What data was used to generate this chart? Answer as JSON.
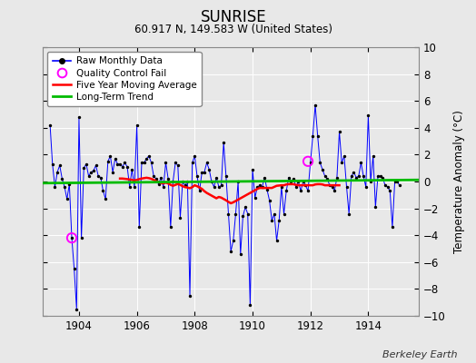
{
  "title": "SUNRISE",
  "subtitle": "60.917 N, 149.583 W (United States)",
  "ylabel": "Temperature Anomaly (°C)",
  "attribution": "Berkeley Earth",
  "ylim": [
    -10,
    10
  ],
  "xlim": [
    1902.75,
    1915.75
  ],
  "xticks": [
    1904,
    1906,
    1908,
    1910,
    1912,
    1914
  ],
  "yticks": [
    -10,
    -8,
    -6,
    -4,
    -2,
    0,
    2,
    4,
    6,
    8,
    10
  ],
  "fig_facecolor": "#e8e8e8",
  "ax_facecolor": "#e8e8e8",
  "raw_line_color": "#0000ff",
  "raw_marker_color": "#000000",
  "moving_avg_color": "#ff0000",
  "trend_color": "#00bb00",
  "qc_fail_color": "#ff00ff",
  "grid_color": "#ffffff",
  "raw_data": [
    [
      1903.0,
      4.2
    ],
    [
      1903.083,
      1.3
    ],
    [
      1903.167,
      -0.4
    ],
    [
      1903.25,
      0.7
    ],
    [
      1903.333,
      1.2
    ],
    [
      1903.417,
      0.2
    ],
    [
      1903.5,
      -0.4
    ],
    [
      1903.583,
      -1.3
    ],
    [
      1903.667,
      -0.2
    ],
    [
      1903.75,
      -4.2
    ],
    [
      1903.833,
      -6.5
    ],
    [
      1903.917,
      -9.5
    ],
    [
      1904.0,
      4.8
    ],
    [
      1904.083,
      -4.2
    ],
    [
      1904.167,
      1.0
    ],
    [
      1904.25,
      1.3
    ],
    [
      1904.333,
      0.4
    ],
    [
      1904.417,
      0.7
    ],
    [
      1904.5,
      0.8
    ],
    [
      1904.583,
      1.2
    ],
    [
      1904.667,
      0.4
    ],
    [
      1904.75,
      0.3
    ],
    [
      1904.833,
      -0.7
    ],
    [
      1904.917,
      -1.3
    ],
    [
      1905.0,
      1.5
    ],
    [
      1905.083,
      1.9
    ],
    [
      1905.167,
      0.7
    ],
    [
      1905.25,
      1.7
    ],
    [
      1905.333,
      1.3
    ],
    [
      1905.417,
      1.3
    ],
    [
      1905.5,
      1.1
    ],
    [
      1905.583,
      1.4
    ],
    [
      1905.667,
      1.1
    ],
    [
      1905.75,
      -0.4
    ],
    [
      1905.833,
      0.9
    ],
    [
      1905.917,
      -0.4
    ],
    [
      1906.0,
      4.2
    ],
    [
      1906.083,
      -3.4
    ],
    [
      1906.167,
      1.4
    ],
    [
      1906.25,
      1.4
    ],
    [
      1906.333,
      1.7
    ],
    [
      1906.417,
      1.9
    ],
    [
      1906.5,
      1.4
    ],
    [
      1906.583,
      0.4
    ],
    [
      1906.667,
      0.2
    ],
    [
      1906.75,
      -0.2
    ],
    [
      1906.833,
      0.3
    ],
    [
      1906.917,
      -0.4
    ],
    [
      1907.0,
      1.4
    ],
    [
      1907.083,
      0.2
    ],
    [
      1907.167,
      -3.4
    ],
    [
      1907.25,
      0.0
    ],
    [
      1907.333,
      1.4
    ],
    [
      1907.417,
      1.2
    ],
    [
      1907.5,
      -2.7
    ],
    [
      1907.583,
      0.0
    ],
    [
      1907.667,
      -0.3
    ],
    [
      1907.75,
      0.0
    ],
    [
      1907.833,
      -8.5
    ],
    [
      1907.917,
      1.4
    ],
    [
      1908.0,
      1.9
    ],
    [
      1908.083,
      0.4
    ],
    [
      1908.167,
      -0.7
    ],
    [
      1908.25,
      0.7
    ],
    [
      1908.333,
      0.7
    ],
    [
      1908.417,
      1.4
    ],
    [
      1908.5,
      0.9
    ],
    [
      1908.583,
      0.0
    ],
    [
      1908.667,
      -0.4
    ],
    [
      1908.75,
      0.3
    ],
    [
      1908.833,
      -0.4
    ],
    [
      1908.917,
      -0.3
    ],
    [
      1909.0,
      2.9
    ],
    [
      1909.083,
      0.4
    ],
    [
      1909.167,
      -2.4
    ],
    [
      1909.25,
      -5.2
    ],
    [
      1909.333,
      -4.4
    ],
    [
      1909.417,
      -2.4
    ],
    [
      1909.5,
      0.0
    ],
    [
      1909.583,
      -5.4
    ],
    [
      1909.667,
      -2.6
    ],
    [
      1909.75,
      -1.9
    ],
    [
      1909.833,
      -2.4
    ],
    [
      1909.917,
      -9.2
    ],
    [
      1910.0,
      0.9
    ],
    [
      1910.083,
      -1.2
    ],
    [
      1910.167,
      -0.4
    ],
    [
      1910.25,
      -0.3
    ],
    [
      1910.333,
      -0.4
    ],
    [
      1910.417,
      0.3
    ],
    [
      1910.5,
      -0.6
    ],
    [
      1910.583,
      -1.4
    ],
    [
      1910.667,
      -2.9
    ],
    [
      1910.75,
      -2.4
    ],
    [
      1910.833,
      -4.4
    ],
    [
      1910.917,
      -2.9
    ],
    [
      1911.0,
      -0.4
    ],
    [
      1911.083,
      -2.4
    ],
    [
      1911.167,
      -0.7
    ],
    [
      1911.25,
      0.3
    ],
    [
      1911.333,
      0.0
    ],
    [
      1911.417,
      0.2
    ],
    [
      1911.5,
      -0.4
    ],
    [
      1911.583,
      0.0
    ],
    [
      1911.667,
      -0.7
    ],
    [
      1911.75,
      0.0
    ],
    [
      1911.833,
      -0.3
    ],
    [
      1911.917,
      -0.7
    ],
    [
      1912.0,
      1.4
    ],
    [
      1912.083,
      3.4
    ],
    [
      1912.167,
      5.7
    ],
    [
      1912.25,
      3.4
    ],
    [
      1912.333,
      1.4
    ],
    [
      1912.417,
      0.9
    ],
    [
      1912.5,
      0.4
    ],
    [
      1912.583,
      0.2
    ],
    [
      1912.667,
      -0.3
    ],
    [
      1912.75,
      -0.4
    ],
    [
      1912.833,
      -0.7
    ],
    [
      1912.917,
      0.3
    ],
    [
      1913.0,
      3.7
    ],
    [
      1913.083,
      1.4
    ],
    [
      1913.167,
      1.9
    ],
    [
      1913.25,
      -0.4
    ],
    [
      1913.333,
      -2.4
    ],
    [
      1913.417,
      0.4
    ],
    [
      1913.5,
      0.7
    ],
    [
      1913.583,
      0.3
    ],
    [
      1913.667,
      0.4
    ],
    [
      1913.75,
      1.4
    ],
    [
      1913.833,
      0.4
    ],
    [
      1913.917,
      -0.4
    ],
    [
      1914.0,
      4.9
    ],
    [
      1914.083,
      0.0
    ],
    [
      1914.167,
      1.9
    ],
    [
      1914.25,
      -1.9
    ],
    [
      1914.333,
      0.4
    ],
    [
      1914.417,
      0.4
    ],
    [
      1914.5,
      0.3
    ],
    [
      1914.583,
      -0.3
    ],
    [
      1914.667,
      -0.4
    ],
    [
      1914.75,
      -0.7
    ],
    [
      1914.833,
      -3.4
    ],
    [
      1914.917,
      0.0
    ],
    [
      1915.0,
      0.0
    ],
    [
      1915.083,
      -0.3
    ]
  ],
  "qc_fail_points": [
    [
      1903.75,
      -4.2
    ],
    [
      1911.917,
      1.5
    ]
  ],
  "moving_avg": [
    [
      1905.417,
      0.22
    ],
    [
      1905.5,
      0.22
    ],
    [
      1905.583,
      0.2
    ],
    [
      1905.667,
      0.18
    ],
    [
      1905.75,
      0.15
    ],
    [
      1905.833,
      0.12
    ],
    [
      1905.917,
      0.08
    ],
    [
      1906.0,
      0.12
    ],
    [
      1906.083,
      0.18
    ],
    [
      1906.167,
      0.22
    ],
    [
      1906.25,
      0.25
    ],
    [
      1906.333,
      0.28
    ],
    [
      1906.417,
      0.25
    ],
    [
      1906.5,
      0.2
    ],
    [
      1906.583,
      0.12
    ],
    [
      1906.667,
      0.02
    ],
    [
      1906.75,
      -0.05
    ],
    [
      1906.833,
      -0.1
    ],
    [
      1906.917,
      -0.15
    ],
    [
      1907.0,
      -0.08
    ],
    [
      1907.083,
      -0.15
    ],
    [
      1907.167,
      -0.25
    ],
    [
      1907.25,
      -0.32
    ],
    [
      1907.333,
      -0.25
    ],
    [
      1907.417,
      -0.18
    ],
    [
      1907.5,
      -0.25
    ],
    [
      1907.583,
      -0.35
    ],
    [
      1907.667,
      -0.42
    ],
    [
      1907.75,
      -0.45
    ],
    [
      1907.833,
      -0.5
    ],
    [
      1907.917,
      -0.42
    ],
    [
      1908.0,
      -0.28
    ],
    [
      1908.083,
      -0.35
    ],
    [
      1908.167,
      -0.45
    ],
    [
      1908.25,
      -0.55
    ],
    [
      1908.333,
      -0.72
    ],
    [
      1908.417,
      -0.85
    ],
    [
      1908.5,
      -0.95
    ],
    [
      1908.583,
      -1.05
    ],
    [
      1908.667,
      -1.15
    ],
    [
      1908.75,
      -1.25
    ],
    [
      1908.833,
      -1.15
    ],
    [
      1908.917,
      -1.2
    ],
    [
      1909.0,
      -1.3
    ],
    [
      1909.083,
      -1.4
    ],
    [
      1909.167,
      -1.52
    ],
    [
      1909.25,
      -1.62
    ],
    [
      1909.333,
      -1.55
    ],
    [
      1909.417,
      -1.45
    ],
    [
      1909.5,
      -1.35
    ],
    [
      1909.583,
      -1.25
    ],
    [
      1909.667,
      -1.15
    ],
    [
      1909.75,
      -1.05
    ],
    [
      1909.833,
      -0.95
    ],
    [
      1909.917,
      -0.85
    ],
    [
      1910.0,
      -0.75
    ],
    [
      1910.083,
      -0.65
    ],
    [
      1910.167,
      -0.55
    ],
    [
      1910.25,
      -0.48
    ],
    [
      1910.333,
      -0.48
    ],
    [
      1910.417,
      -0.48
    ],
    [
      1910.5,
      -0.48
    ],
    [
      1910.583,
      -0.48
    ],
    [
      1910.667,
      -0.48
    ],
    [
      1910.75,
      -0.4
    ],
    [
      1910.833,
      -0.32
    ],
    [
      1910.917,
      -0.3
    ],
    [
      1911.0,
      -0.28
    ],
    [
      1911.083,
      -0.28
    ],
    [
      1911.167,
      -0.22
    ],
    [
      1911.25,
      -0.2
    ],
    [
      1911.333,
      -0.2
    ],
    [
      1911.417,
      -0.2
    ],
    [
      1911.5,
      -0.25
    ],
    [
      1911.583,
      -0.28
    ],
    [
      1911.667,
      -0.28
    ],
    [
      1911.75,
      -0.28
    ],
    [
      1911.833,
      -0.28
    ],
    [
      1911.917,
      -0.28
    ],
    [
      1912.0,
      -0.28
    ],
    [
      1912.083,
      -0.28
    ],
    [
      1912.167,
      -0.22
    ],
    [
      1912.25,
      -0.2
    ],
    [
      1912.333,
      -0.2
    ],
    [
      1912.417,
      -0.22
    ],
    [
      1912.5,
      -0.28
    ],
    [
      1912.583,
      -0.28
    ],
    [
      1912.667,
      -0.28
    ],
    [
      1912.75,
      -0.28
    ],
    [
      1912.833,
      -0.28
    ],
    [
      1912.917,
      -0.28
    ],
    [
      1913.0,
      -0.28
    ]
  ],
  "trend_x": [
    1902.75,
    1915.75
  ],
  "trend_y": [
    -0.12,
    0.12
  ]
}
